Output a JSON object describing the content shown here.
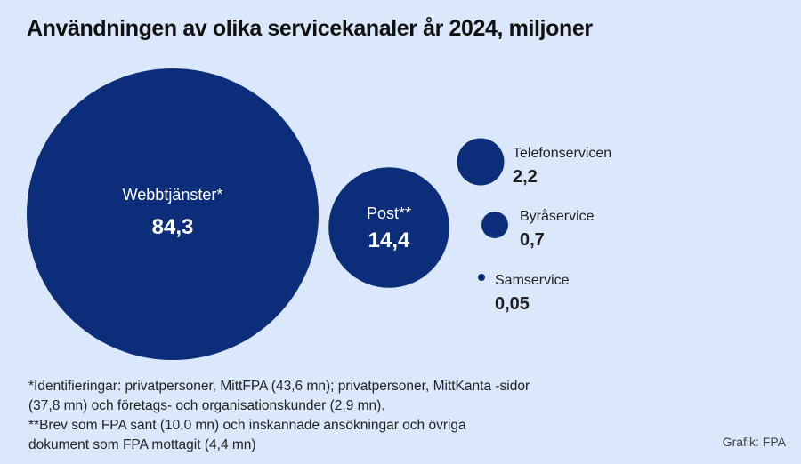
{
  "title": "Användningen av olika servicekanaler år 2024, miljoner",
  "colors": {
    "bubble": "#0b2d7a",
    "background": "#dbe8fb",
    "inside_text": "#ffffff",
    "outside_label": "#1f1f1f"
  },
  "chart_data": {
    "type": "bubble",
    "unit": "miljoner",
    "items": [
      {
        "label": "Webbtjänster*",
        "value": 84.3,
        "value_label": "84,3"
      },
      {
        "label": "Post**",
        "value": 14.4,
        "value_label": "14,4"
      },
      {
        "label": "Telefonservicen",
        "value": 2.2,
        "value_label": "2,2"
      },
      {
        "label": "Byråservice",
        "value": 0.7,
        "value_label": "0,7"
      },
      {
        "label": "Samservice",
        "value": 0.05,
        "value_label": "0,05"
      }
    ]
  },
  "footnotes": {
    "line1": "*Identifieringar: privatpersoner, MittFPA (43,6 mn); privatpersoner, MittKanta -sidor",
    "line2": "(37,8 mn) och företags- och organisationskunder (2,9 mn).",
    "line3": "**Brev som FPA sänt (10,0 mn) och inskannade ansökningar och övriga",
    "line4": "dokument som FPA mottagit (4,4 mn)"
  },
  "credit": "Grafik: FPA"
}
